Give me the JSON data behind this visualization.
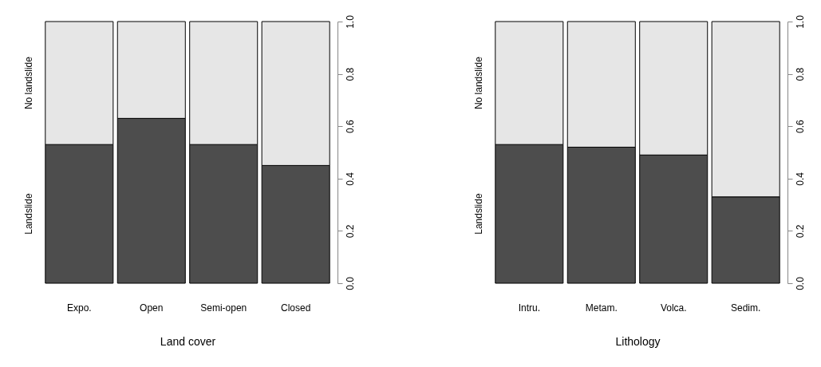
{
  "chart_data": [
    {
      "type": "bar",
      "stacked": true,
      "xlabel": "Land cover",
      "categories": [
        "Expo.",
        "Open",
        "Semi-open",
        "Closed"
      ],
      "series": [
        {
          "name": "Landslide",
          "color": "#4d4d4d",
          "values": [
            0.53,
            0.63,
            0.53,
            0.45
          ]
        },
        {
          "name": "No landslide",
          "color": "#e6e6e6",
          "values": [
            0.47,
            0.37,
            0.47,
            0.55
          ]
        }
      ],
      "ylim": [
        0,
        1
      ],
      "yticks": [
        {
          "value": 0,
          "label": "0.0"
        },
        0.2,
        0.4,
        0.6,
        0.8,
        {
          "value": 1,
          "label": "1.0"
        }
      ],
      "grid": false
    },
    {
      "type": "bar",
      "stacked": true,
      "xlabel": "Lithology",
      "categories": [
        "Intru.",
        "Metam.",
        "Volca.",
        "Sedim."
      ],
      "series": [
        {
          "name": "Landslide",
          "color": "#4d4d4d",
          "values": [
            0.53,
            0.52,
            0.49,
            0.33
          ]
        },
        {
          "name": "No landslide",
          "color": "#e6e6e6",
          "values": [
            0.47,
            0.48,
            0.51,
            0.67
          ]
        }
      ],
      "ylim": [
        0,
        1
      ],
      "yticks": [
        {
          "value": 0,
          "label": "0.0"
        },
        0.2,
        0.4,
        0.6,
        0.8,
        {
          "value": 1,
          "label": "1.0"
        }
      ],
      "grid": false
    }
  ]
}
